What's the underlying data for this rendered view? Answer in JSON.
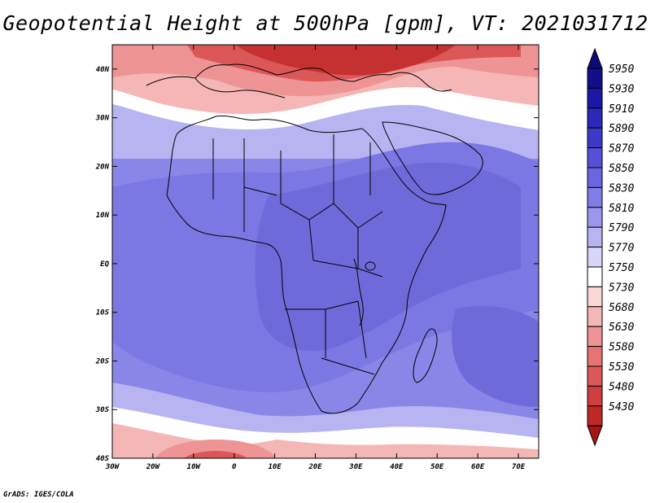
{
  "title": "Geopotential Height at 500hPa [gpm], VT: 2021031712",
  "credit": "GrADS: IGES/COLA",
  "map": {
    "variable": "Geopotential Height",
    "level": "500hPa",
    "units": "gpm",
    "valid_time": "2021031712",
    "lon_range": [
      -30,
      75
    ],
    "lat_range": [
      -40,
      45
    ],
    "lat_ticks": [
      {
        "value": 40,
        "label": "40N"
      },
      {
        "value": 30,
        "label": "30N"
      },
      {
        "value": 20,
        "label": "20N"
      },
      {
        "value": 10,
        "label": "10N"
      },
      {
        "value": 0,
        "label": "EQ"
      },
      {
        "value": -10,
        "label": "10S"
      },
      {
        "value": -20,
        "label": "20S"
      },
      {
        "value": -30,
        "label": "30S"
      },
      {
        "value": -40,
        "label": "40S"
      }
    ],
    "lon_ticks": [
      {
        "value": -30,
        "label": "30W"
      },
      {
        "value": -20,
        "label": "20W"
      },
      {
        "value": -10,
        "label": "10W"
      },
      {
        "value": 0,
        "label": "0"
      },
      {
        "value": 10,
        "label": "10E"
      },
      {
        "value": 20,
        "label": "20E"
      },
      {
        "value": 30,
        "label": "30E"
      },
      {
        "value": 40,
        "label": "40E"
      },
      {
        "value": 50,
        "label": "50E"
      },
      {
        "value": 60,
        "label": "60E"
      },
      {
        "value": 70,
        "label": "70E"
      }
    ]
  },
  "colorbar": {
    "levels": [
      {
        "label": "5950",
        "color": "#120e8a"
      },
      {
        "label": "5930",
        "color": "#1c17a6"
      },
      {
        "label": "5910",
        "color": "#2b27b8"
      },
      {
        "label": "5890",
        "color": "#3d38c7"
      },
      {
        "label": "5870",
        "color": "#5550d6"
      },
      {
        "label": "5850",
        "color": "#6b66e0"
      },
      {
        "label": "5830",
        "color": "#817de6"
      },
      {
        "label": "5810",
        "color": "#9b97ec"
      },
      {
        "label": "5790",
        "color": "#b7b4f1"
      },
      {
        "label": "5770",
        "color": "#d8d6f8"
      },
      {
        "label": "5750",
        "color": "#ffffff"
      },
      {
        "label": "5730",
        "color": "#fbd8d8"
      },
      {
        "label": "5680",
        "color": "#f5b6b6"
      },
      {
        "label": "5630",
        "color": "#ee9494"
      },
      {
        "label": "5580",
        "color": "#e67474"
      },
      {
        "label": "5530",
        "color": "#dc5858"
      },
      {
        "label": "5480",
        "color": "#cf3e3e"
      },
      {
        "label": "5430",
        "color": "#bf2626"
      }
    ],
    "top_arrow_color": "#0d0a78",
    "bottom_arrow_color": "#a91414"
  }
}
